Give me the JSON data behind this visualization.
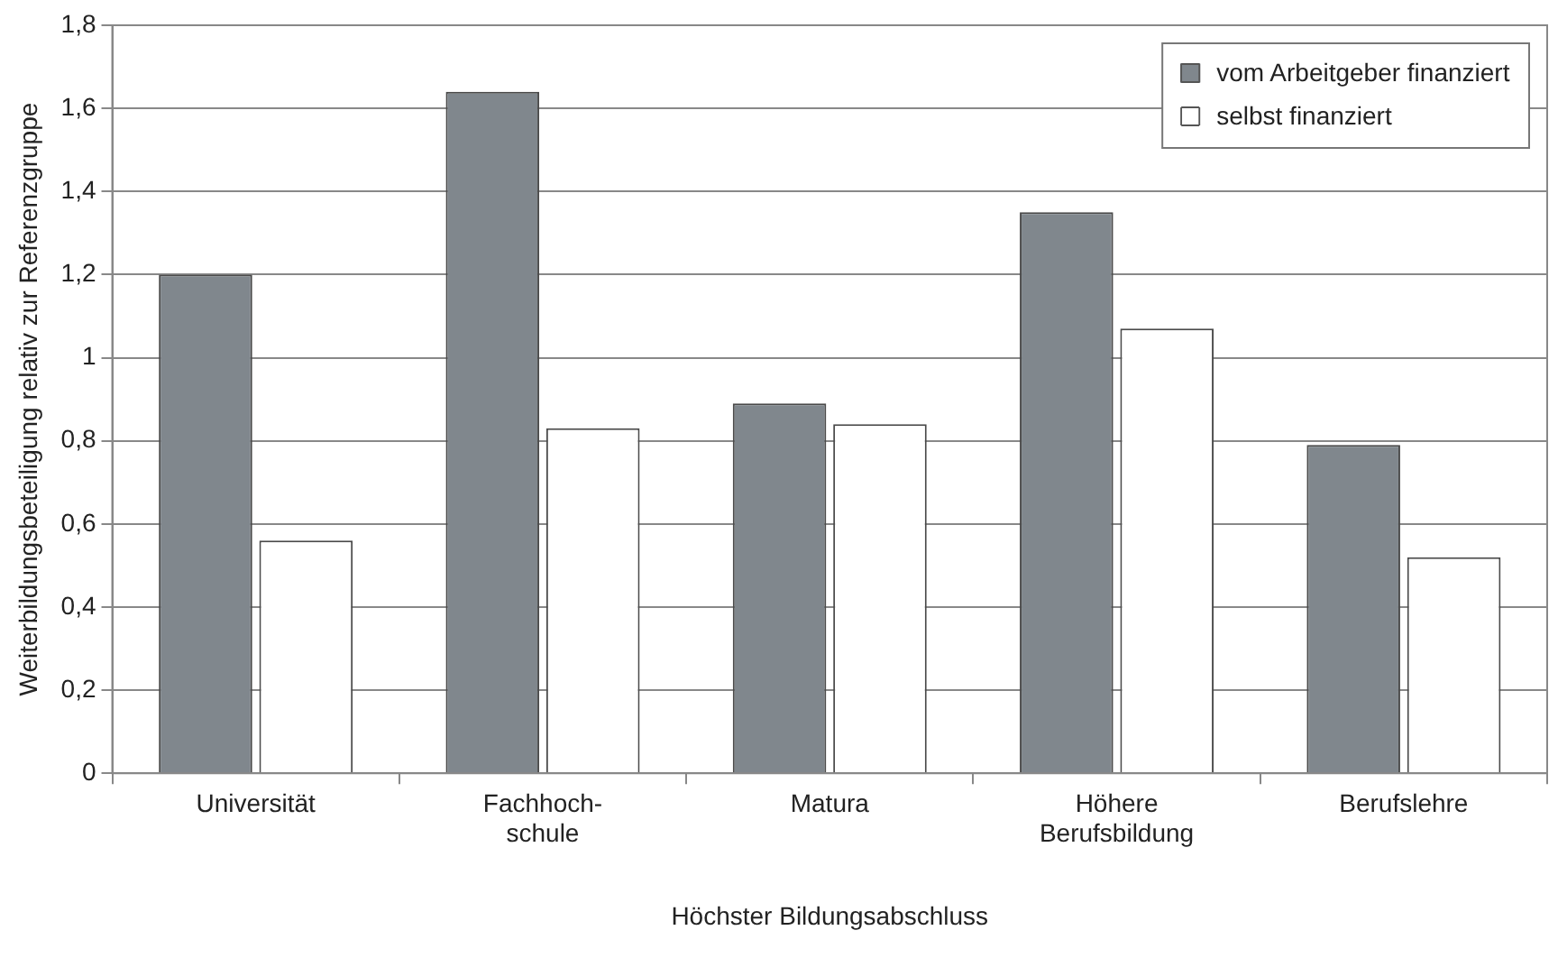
{
  "chart_data": {
    "type": "bar",
    "xlabel": "Höchster Bildungsabschluss",
    "ylabel": "Weiterbildungsbeteiligung relativ zur Referenzgruppe",
    "categories": [
      "Universität",
      "Fachhoch-\nschule",
      "Matura",
      "Höhere\nBerufsbildung",
      "Berufslehre"
    ],
    "series": [
      {
        "name": "vom Arbeitgeber finanziert",
        "color": "#80878d",
        "values": [
          1.2,
          1.64,
          0.89,
          1.35,
          0.79
        ]
      },
      {
        "name": "selbst finanziert",
        "color": "#ffffff",
        "values": [
          0.56,
          0.83,
          0.84,
          1.07,
          0.52
        ]
      }
    ],
    "ylim": [
      0,
      1.8
    ],
    "yticks": [
      0,
      {
        "value": 0.2,
        "label": "0,2"
      },
      {
        "value": 0.4,
        "label": "0,4"
      },
      {
        "value": 0.6,
        "label": "0,6"
      },
      {
        "value": 0.8,
        "label": "0,8"
      },
      1,
      {
        "value": 1.2,
        "label": "1,2"
      },
      {
        "value": 1.4,
        "label": "1,4"
      },
      {
        "value": 1.6,
        "label": "1,6"
      },
      {
        "value": 1.8,
        "label": "1,8"
      }
    ],
    "grid": "y",
    "legend": "top right"
  }
}
